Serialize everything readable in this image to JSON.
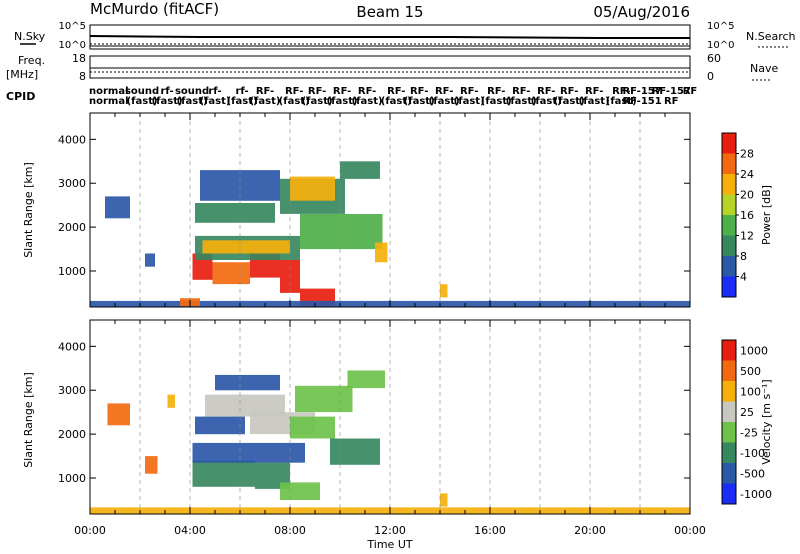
{
  "header": {
    "station": "McMurdo (fitACF)",
    "beam": "Beam 15",
    "date": "05/Aug/2016"
  },
  "top_panels": {
    "nsky_label": "N.Sky",
    "nsky_scale_top": "10^5",
    "nsky_scale_bottom": "10^0",
    "nsearch_label": "N.Search",
    "nsearch_scale_top": "10^5",
    "nsearch_scale_bottom": "10^0",
    "freq_label_1": "Freq.",
    "freq_label_2": "[MHz]",
    "freq_scale_top": "18",
    "freq_scale_bottom": "8",
    "nave_label": "Nave",
    "nave_scale_top": "60",
    "nave_scale_bottom": "0",
    "cpid_label": "CPID",
    "cpid_entries": [
      {
        "t": "00:45",
        "row": 0,
        "text": "normal"
      },
      {
        "t": "00:45",
        "row": 1,
        "text": "normal"
      },
      {
        "t": "02:05",
        "row": 0,
        "text": "sound"
      },
      {
        "t": "02:05",
        "row": 1,
        "text": "(fast)"
      },
      {
        "t": "03:05",
        "row": 0,
        "text": "rf-"
      },
      {
        "t": "03:05",
        "row": 1,
        "text": "(fast)"
      },
      {
        "t": "04:05",
        "row": 0,
        "text": "sound"
      },
      {
        "t": "04:05",
        "row": 1,
        "text": "(fast)"
      },
      {
        "t": "05:00",
        "row": 0,
        "text": "rf-"
      },
      {
        "t": "05:00",
        "row": 1,
        "text": "(fast)"
      },
      {
        "t": "06:05",
        "row": 0,
        "text": "rf-"
      },
      {
        "t": "06:05",
        "row": 1,
        "text": "(fast)"
      },
      {
        "t": "07:00",
        "row": 0,
        "text": "RF-"
      },
      {
        "t": "07:00",
        "row": 1,
        "text": "(fast)"
      },
      {
        "t": "08:10",
        "row": 0,
        "text": "RF-"
      },
      {
        "t": "08:10",
        "row": 1,
        "text": "(fast)"
      },
      {
        "t": "09:05",
        "row": 0,
        "text": "RF-"
      },
      {
        "t": "09:05",
        "row": 1,
        "text": "(fast)"
      },
      {
        "t": "10:05",
        "row": 0,
        "text": "RF-"
      },
      {
        "t": "10:05",
        "row": 1,
        "text": "(fast)"
      },
      {
        "t": "11:05",
        "row": 0,
        "text": "RF-"
      },
      {
        "t": "11:05",
        "row": 1,
        "text": "(fast)"
      },
      {
        "t": "12:15",
        "row": 0,
        "text": "RF-"
      },
      {
        "t": "12:15",
        "row": 1,
        "text": "(fast)"
      },
      {
        "t": "13:10",
        "row": 0,
        "text": "RF-"
      },
      {
        "t": "13:10",
        "row": 1,
        "text": "(fast)"
      },
      {
        "t": "14:10",
        "row": 0,
        "text": "RF-"
      },
      {
        "t": "14:10",
        "row": 1,
        "text": "(fast)"
      },
      {
        "t": "15:10",
        "row": 0,
        "text": "RF-"
      },
      {
        "t": "15:10",
        "row": 1,
        "text": "(fast)"
      },
      {
        "t": "16:15",
        "row": 0,
        "text": "RF-"
      },
      {
        "t": "16:15",
        "row": 1,
        "text": "(fast)"
      },
      {
        "t": "17:15",
        "row": 0,
        "text": "RF-"
      },
      {
        "t": "17:15",
        "row": 1,
        "text": "(fast)"
      },
      {
        "t": "18:15",
        "row": 0,
        "text": "RF-"
      },
      {
        "t": "18:15",
        "row": 1,
        "text": "(fast)"
      },
      {
        "t": "19:10",
        "row": 0,
        "text": "RF-"
      },
      {
        "t": "19:10",
        "row": 1,
        "text": "(fast)"
      },
      {
        "t": "20:10",
        "row": 0,
        "text": "RF-"
      },
      {
        "t": "20:10",
        "row": 1,
        "text": "(fast)"
      },
      {
        "t": "21:15",
        "row": 0,
        "text": "RF-"
      },
      {
        "t": "21:15",
        "row": 1,
        "text": "(fast)"
      },
      {
        "t": "22:05",
        "row": 0,
        "text": "RF-157"
      },
      {
        "t": "22:05",
        "row": 1,
        "text": "RF-151"
      },
      {
        "t": "23:15",
        "row": 0,
        "text": "RF-157"
      },
      {
        "t": "23:15",
        "row": 1,
        "text": "RF"
      },
      {
        "t": "24:00",
        "row": 0,
        "text": "RF"
      }
    ]
  },
  "chart_data": [
    {
      "type": "heatmap",
      "title": "",
      "quantity": "Power",
      "xlabel": "",
      "ylabel": "Slant Range [km]",
      "xlim": [
        "00:00",
        "24:00"
      ],
      "ylim": [
        180,
        4600
      ],
      "yticks": [
        1000,
        2000,
        3000,
        4000
      ],
      "grid": "dashed vertical lines every 2 hours",
      "colorbar": {
        "label": "Power [dB]",
        "range": [
          0,
          32
        ],
        "ticks": [
          "4",
          "8",
          "12",
          "16",
          "20",
          "24",
          "28"
        ],
        "bins": [
          {
            "from": 0,
            "to": 4,
            "color": "#1a2cf5"
          },
          {
            "from": 4,
            "to": 8,
            "color": "#2c58a8"
          },
          {
            "from": 8,
            "to": 12,
            "color": "#37885f"
          },
          {
            "from": 12,
            "to": 16,
            "color": "#4eb04a"
          },
          {
            "from": 16,
            "to": 20,
            "color": "#b6d428"
          },
          {
            "from": 20,
            "to": 24,
            "color": "#f5b00c"
          },
          {
            "from": 24,
            "to": 28,
            "color": "#f26a10"
          },
          {
            "from": 28,
            "to": 32,
            "color": "#e81e10"
          }
        ]
      },
      "regions": [
        {
          "t0": 4.1,
          "t1": 4.9,
          "r0": 800,
          "r1": 1400,
          "color": "#e81e10"
        },
        {
          "t0": 4.9,
          "t1": 6.4,
          "r0": 700,
          "r1": 1200,
          "color": "#f26a10"
        },
        {
          "t0": 6.4,
          "t1": 7.6,
          "r0": 850,
          "r1": 1400,
          "color": "#e81e10"
        },
        {
          "t0": 7.6,
          "t1": 8.4,
          "r0": 500,
          "r1": 1250,
          "color": "#e81e10"
        },
        {
          "t0": 4.2,
          "t1": 8.4,
          "r0": 1250,
          "r1": 1800,
          "color": "#37885f"
        },
        {
          "t0": 4.5,
          "t1": 8.0,
          "r0": 1400,
          "r1": 1700,
          "color": "#f5b00c"
        },
        {
          "t0": 8.4,
          "t1": 11.7,
          "r0": 1500,
          "r1": 2300,
          "color": "#4eb04a"
        },
        {
          "t0": 4.2,
          "t1": 7.4,
          "r0": 2100,
          "r1": 2550,
          "color": "#37885f"
        },
        {
          "t0": 4.4,
          "t1": 7.6,
          "r0": 2600,
          "r1": 3300,
          "color": "#2c58a8"
        },
        {
          "t0": 7.6,
          "t1": 10.2,
          "r0": 2300,
          "r1": 3100,
          "color": "#37885f"
        },
        {
          "t0": 8.0,
          "t1": 9.8,
          "r0": 2600,
          "r1": 3150,
          "color": "#f5b00c"
        },
        {
          "t0": 10.0,
          "t1": 11.6,
          "r0": 3100,
          "r1": 3500,
          "color": "#37885f"
        },
        {
          "t0": 11.4,
          "t1": 11.9,
          "r0": 1200,
          "r1": 1650,
          "color": "#f5b00c"
        },
        {
          "t0": 8.4,
          "t1": 9.8,
          "r0": 200,
          "r1": 600,
          "color": "#e81e10"
        },
        {
          "t0": 0.6,
          "t1": 1.6,
          "r0": 2200,
          "r1": 2700,
          "color": "#2c58a8"
        },
        {
          "t0": 2.2,
          "t1": 2.6,
          "r0": 1100,
          "r1": 1400,
          "color": "#2c58a8"
        },
        {
          "t0": 14.0,
          "t1": 14.3,
          "r0": 400,
          "r1": 700,
          "color": "#f5b00c"
        },
        {
          "t0": 0.0,
          "t1": 24.0,
          "r0": 180,
          "r1": 320,
          "color": "#2c58a8"
        },
        {
          "t0": 3.6,
          "t1": 4.4,
          "r0": 200,
          "r1": 380,
          "color": "#f26a10"
        }
      ]
    },
    {
      "type": "heatmap",
      "title": "",
      "quantity": "Velocity",
      "xlabel": "Time UT",
      "ylabel": "Slant Range [km]",
      "xlim": [
        "00:00",
        "24:00"
      ],
      "ylim": [
        180,
        4600
      ],
      "yticks": [
        1000,
        2000,
        3000,
        4000
      ],
      "xticks": [
        "00:00",
        "04:00",
        "08:00",
        "12:00",
        "16:00",
        "20:00",
        "00:00"
      ],
      "grid": "dashed vertical lines every 2 hours",
      "colorbar": {
        "label": "Velocity [m s⁻¹]",
        "ticks": [
          "1000",
          "500",
          "100",
          "25",
          "-25",
          "-100",
          "-500",
          "-1000"
        ],
        "bins": [
          {
            "label": "> 1000",
            "color": "#1a2cf5"
          },
          {
            "label": "500 to 1000",
            "color": "#2c58a8"
          },
          {
            "label": "100 to 500",
            "color": "#37885f"
          },
          {
            "label": "25 to 100",
            "color": "#6cc24a"
          },
          {
            "label": "-25 to 25",
            "color": "#c8c8c0"
          },
          {
            "label": "-100 to -25",
            "color": "#f5b00c"
          },
          {
            "label": "-500 to -100",
            "color": "#f26a10"
          },
          {
            "label": "< -1000",
            "color": "#e81e10"
          }
        ]
      },
      "regions": [
        {
          "t0": 4.1,
          "t1": 6.6,
          "r0": 800,
          "r1": 1400,
          "color": "#37885f"
        },
        {
          "t0": 6.6,
          "t1": 8.0,
          "r0": 750,
          "r1": 1350,
          "color": "#37885f"
        },
        {
          "t0": 4.1,
          "t1": 8.6,
          "r0": 1350,
          "r1": 1800,
          "color": "#2c58a8"
        },
        {
          "t0": 4.2,
          "t1": 6.2,
          "r0": 2000,
          "r1": 2400,
          "color": "#2c58a8"
        },
        {
          "t0": 4.6,
          "t1": 7.8,
          "r0": 2400,
          "r1": 2900,
          "color": "#c8c8c0"
        },
        {
          "t0": 6.4,
          "t1": 9.0,
          "r0": 2000,
          "r1": 2500,
          "color": "#c8c8c0"
        },
        {
          "t0": 8.0,
          "t1": 9.8,
          "r0": 1900,
          "r1": 2400,
          "color": "#6cc24a"
        },
        {
          "t0": 9.6,
          "t1": 11.6,
          "r0": 1300,
          "r1": 1900,
          "color": "#37885f"
        },
        {
          "t0": 8.2,
          "t1": 10.5,
          "r0": 2500,
          "r1": 3100,
          "color": "#6cc24a"
        },
        {
          "t0": 10.3,
          "t1": 11.8,
          "r0": 3050,
          "r1": 3450,
          "color": "#6cc24a"
        },
        {
          "t0": 5.0,
          "t1": 7.6,
          "r0": 3000,
          "r1": 3350,
          "color": "#2c58a8"
        },
        {
          "t0": 7.6,
          "t1": 9.2,
          "r0": 500,
          "r1": 900,
          "color": "#6cc24a"
        },
        {
          "t0": 0.7,
          "t1": 1.6,
          "r0": 2200,
          "r1": 2700,
          "color": "#f26a10"
        },
        {
          "t0": 2.2,
          "t1": 2.7,
          "r0": 1100,
          "r1": 1500,
          "color": "#f26a10"
        },
        {
          "t0": 3.1,
          "t1": 3.4,
          "r0": 2600,
          "r1": 2900,
          "color": "#f5b00c"
        },
        {
          "t0": 14.0,
          "t1": 14.3,
          "r0": 350,
          "r1": 650,
          "color": "#f5b00c"
        },
        {
          "t0": 0.0,
          "t1": 24.0,
          "r0": 180,
          "r1": 330,
          "color": "#f5b00c"
        }
      ]
    }
  ]
}
